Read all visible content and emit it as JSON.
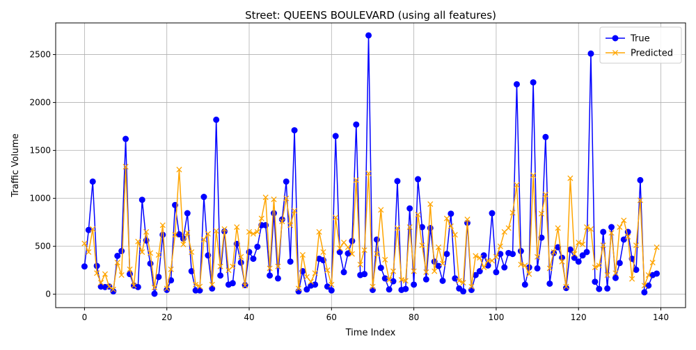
{
  "chart_data": {
    "type": "line",
    "title": "Street: QUEENS BOULEVARD (using all features)",
    "xlabel": "Time Index",
    "ylabel": "Traffic Volume",
    "xlim": [
      -7,
      146
    ],
    "ylim": [
      -140,
      2830
    ],
    "x_ticks": [
      0,
      20,
      40,
      60,
      80,
      100,
      120,
      140
    ],
    "y_ticks": [
      0,
      500,
      1000,
      1500,
      2000,
      2500
    ],
    "grid": true,
    "legend_position": "top-right",
    "series": [
      {
        "name": "True",
        "color": "#0000ff",
        "marker": "circle",
        "values": [
          290,
          670,
          1175,
          295,
          80,
          75,
          80,
          30,
          400,
          450,
          1620,
          210,
          90,
          75,
          985,
          560,
          320,
          5,
          180,
          620,
          45,
          145,
          930,
          625,
          580,
          845,
          240,
          40,
          40,
          1015,
          405,
          60,
          1820,
          195,
          655,
          100,
          115,
          525,
          330,
          95,
          440,
          370,
          495,
          720,
          720,
          195,
          845,
          165,
          780,
          1175,
          340,
          1710,
          30,
          240,
          50,
          90,
          100,
          370,
          355,
          80,
          40,
          1650,
          440,
          230,
          425,
          555,
          1770,
          200,
          210,
          2700,
          45,
          570,
          275,
          165,
          50,
          135,
          1180,
          45,
          55,
          895,
          100,
          1200,
          700,
          155,
          690,
          340,
          295,
          140,
          420,
          840,
          165,
          60,
          30,
          745,
          45,
          200,
          240,
          405,
          300,
          845,
          230,
          420,
          280,
          430,
          420,
          2190,
          450,
          100,
          280,
          2210,
          270,
          590,
          1640,
          110,
          430,
          490,
          380,
          65,
          465,
          380,
          340,
          405,
          440,
          2510,
          130,
          55,
          650,
          60,
          700,
          170,
          325,
          570,
          650,
          370,
          255,
          1190,
          20,
          90,
          200,
          215
        ]
      },
      {
        "name": "Predicted",
        "color": "#ffa500",
        "marker": "x",
        "values": [
          530,
          440,
          680,
          220,
          120,
          210,
          80,
          50,
          330,
          200,
          1330,
          260,
          90,
          550,
          440,
          650,
          430,
          70,
          410,
          720,
          60,
          260,
          620,
          1300,
          520,
          640,
          440,
          100,
          80,
          570,
          630,
          100,
          660,
          290,
          680,
          250,
          290,
          700,
          390,
          90,
          650,
          630,
          650,
          790,
          1010,
          270,
          990,
          290,
          760,
          1000,
          720,
          870,
          60,
          410,
          180,
          130,
          220,
          650,
          440,
          250,
          100,
          800,
          480,
          540,
          490,
          420,
          1190,
          310,
          460,
          1260,
          80,
          420,
          880,
          360,
          150,
          240,
          690,
          150,
          140,
          700,
          240,
          830,
          510,
          230,
          940,
          240,
          490,
          320,
          790,
          710,
          620,
          140,
          120,
          780,
          80,
          400,
          380,
          280,
          350,
          350,
          390,
          500,
          650,
          690,
          850,
          1140,
          310,
          300,
          210,
          1240,
          390,
          840,
          1040,
          270,
          440,
          690,
          340,
          80,
          1210,
          420,
          540,
          520,
          700,
          680,
          280,
          300,
          510,
          200,
          640,
          220,
          700,
          770,
          600,
          160,
          510,
          980,
          90,
          200,
          330,
          490
        ]
      }
    ]
  }
}
